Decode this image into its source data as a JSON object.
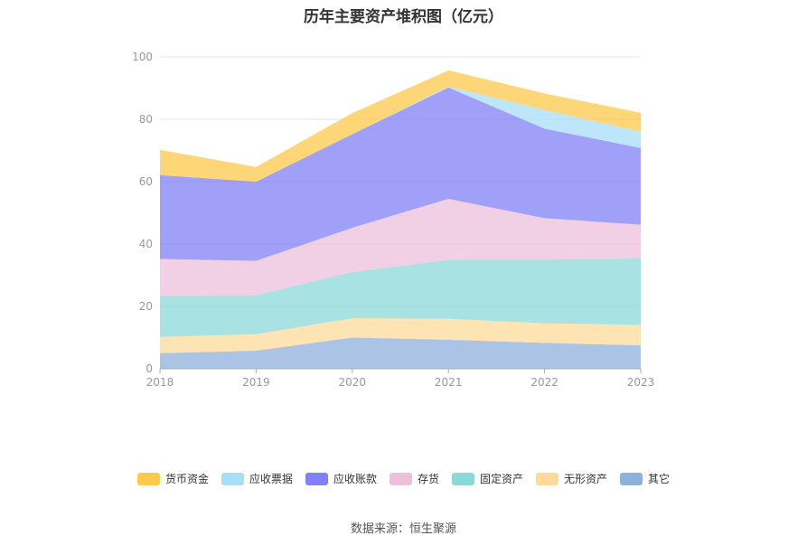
{
  "chart_data": {
    "type": "area",
    "stacked": true,
    "title": "历年主要资产堆积图（亿元）",
    "x": [
      "2018",
      "2019",
      "2020",
      "2021",
      "2022",
      "2023"
    ],
    "ylim": [
      0,
      100
    ],
    "yticks": [
      0,
      20,
      40,
      60,
      80,
      100
    ],
    "grid": true,
    "legend_position": "bottom",
    "series": [
      {
        "name": "其它",
        "color": "#8fb0dc",
        "values": [
          5.0,
          5.8,
          10.0,
          9.3,
          8.3,
          7.5
        ]
      },
      {
        "name": "无形资产",
        "color": "#fdd99a",
        "values": [
          5.2,
          5.3,
          6.2,
          6.7,
          6.3,
          6.6
        ]
      },
      {
        "name": "固定资产",
        "color": "#8bd8d8",
        "values": [
          13.1,
          12.5,
          14.8,
          18.9,
          20.4,
          21.3
        ]
      },
      {
        "name": "存货",
        "color": "#ecbfdb",
        "values": [
          11.9,
          11.0,
          14.2,
          19.6,
          13.3,
          10.8
        ]
      },
      {
        "name": "应收账款",
        "color": "#8280f5",
        "values": [
          26.9,
          25.4,
          30.0,
          35.7,
          28.7,
          24.6
        ]
      },
      {
        "name": "应收票据",
        "color": "#a7def8",
        "values": [
          0.0,
          0.0,
          0.0,
          0.3,
          6.0,
          5.2
        ]
      },
      {
        "name": "货币资金",
        "color": "#fcc94a",
        "values": [
          8.1,
          4.7,
          6.8,
          5.2,
          5.3,
          6.1
        ]
      }
    ],
    "legend_order": [
      "货币资金",
      "应收票据",
      "应收账款",
      "存货",
      "固定资产",
      "无形资产",
      "其它"
    ]
  },
  "source": "数据来源：恒生聚源"
}
